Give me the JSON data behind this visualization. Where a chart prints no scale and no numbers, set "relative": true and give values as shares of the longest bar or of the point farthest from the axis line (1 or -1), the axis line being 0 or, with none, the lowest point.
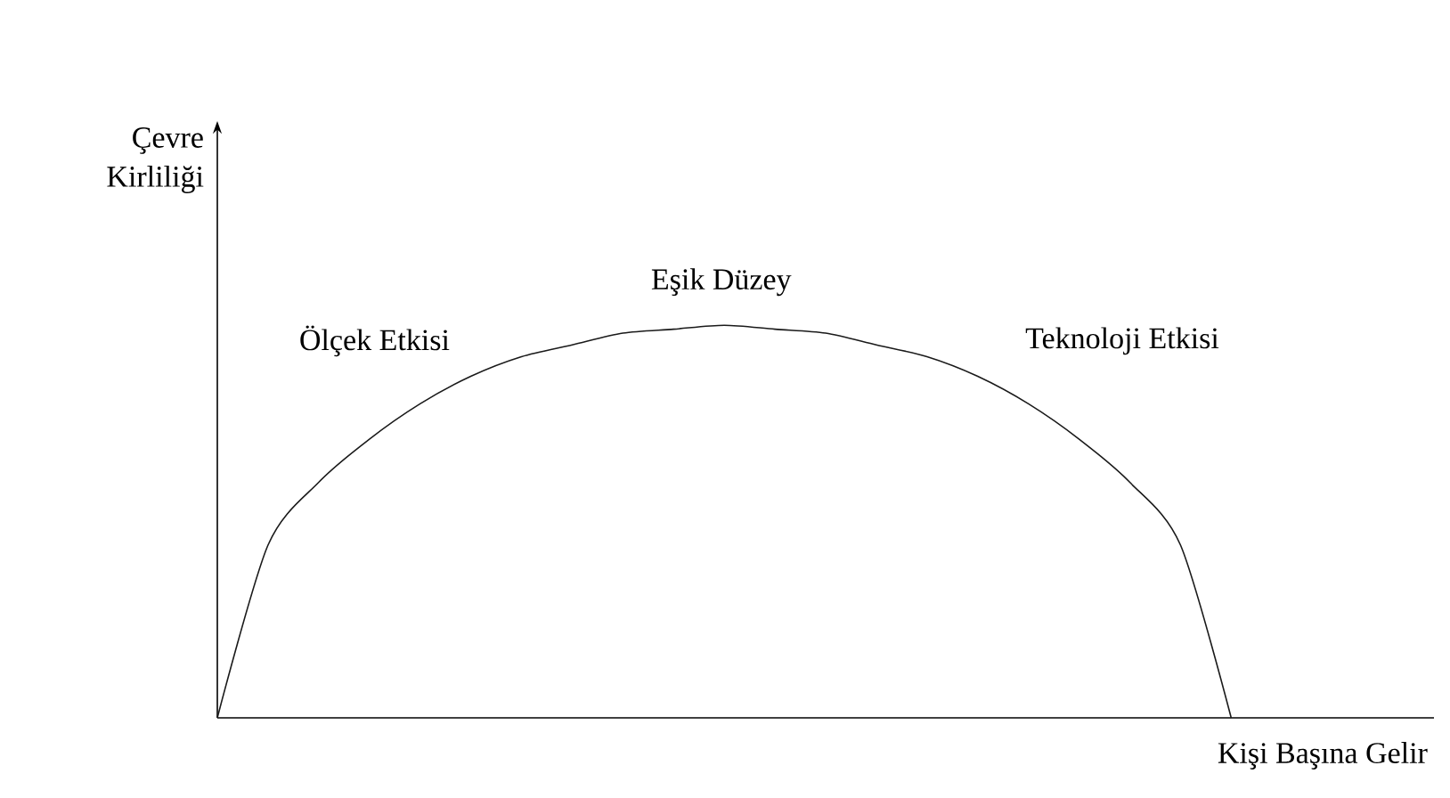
{
  "chart_data": {
    "type": "line",
    "relative": true,
    "xlabel": "Kişi Başına Gelir",
    "ylabel": "Çevre Kirliliği",
    "categories": [
      null,
      null,
      null,
      null,
      null,
      null,
      null,
      null,
      null,
      null,
      null,
      null,
      null,
      null,
      null,
      null,
      null,
      null,
      null,
      null,
      null,
      null,
      null,
      null,
      null
    ],
    "series": [
      {
        "color": "#1a1a1a",
        "values": [
          0,
          0.44,
          0.6,
          0.71,
          0.8,
          0.87,
          0.92,
          0.95,
          0.98,
          0.99,
          1,
          0.99,
          0.98,
          0.95,
          0.92,
          0.87,
          0.8,
          0.71,
          0.6,
          0.44,
          0,
          null,
          null,
          null,
          null
        ]
      }
    ],
    "annotations": [
      "Ölçek Etkisi",
      "Eşik Düzey",
      "Teknoloji Etkisi"
    ],
    "marker": "none",
    "line_style": "solid"
  }
}
